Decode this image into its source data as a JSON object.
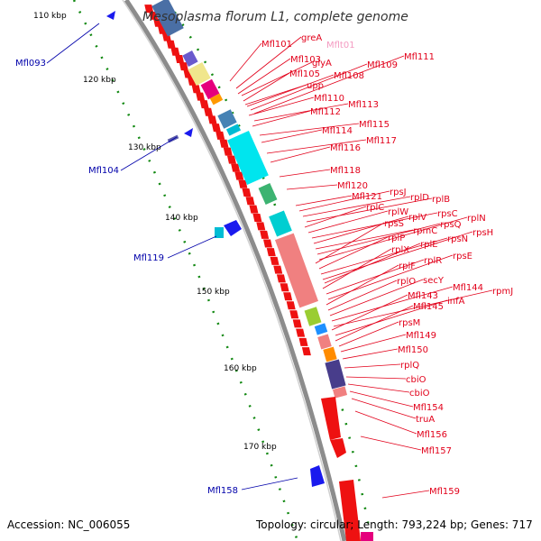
{
  "title": "Mesoplasma florum L1, complete genome",
  "footer": {
    "accession": "Accession: NC_006055",
    "topology": "Topology: circular; Length: 793,224 bp; Genes: 717"
  },
  "colors": {
    "forward": "#ee1111",
    "reverse": "#1a1aee",
    "trna": "#f49ac1",
    "backbone": "#8c8c8c",
    "tick": "#118811",
    "label_forward": "#e2001a",
    "label_reverse": "#0000aa"
  },
  "kbp_labels": [
    "110 kbp",
    "120 kbp",
    "130 kbp",
    "140 kbp",
    "150 kbp",
    "160 kbp",
    "170 kbp"
  ],
  "forward_labels": [
    "Mfl101",
    "greA",
    "glyA",
    "Mfl103",
    "Mfl105",
    "Mfl108",
    "Mfl109",
    "Mfl111",
    "upp",
    "Mfl110",
    "Mfl113",
    "Mfl112",
    "Mfl115",
    "Mfl114",
    "Mfl117",
    "Mfl116",
    "Mfl118",
    "Mfl120",
    "Mfl121",
    "rpsJ",
    "rplD",
    "rplB",
    "rplC",
    "rplW",
    "rpsC",
    "rplV",
    "rpmC",
    "rpsQ",
    "rplN",
    "rpsS",
    "rplP",
    "rpsN",
    "rpsH",
    "rplE",
    "rplX",
    "rplR",
    "rpsE",
    "rplF",
    "rplO",
    "secY",
    "Mfl144",
    "rpmJ",
    "Mfl143",
    "infA",
    "Mfl145",
    "rpsM",
    "Mfl149",
    "Mfl150",
    "rplQ",
    "cbiO",
    "cbiO",
    "Mfl154",
    "truA",
    "Mfl156",
    "Mfl157",
    "Mfl159"
  ],
  "trna_labels": [
    "Mflt01"
  ],
  "reverse_labels": [
    "Mfl093",
    "Mfl104",
    "Mfl119",
    "Mfl158"
  ]
}
